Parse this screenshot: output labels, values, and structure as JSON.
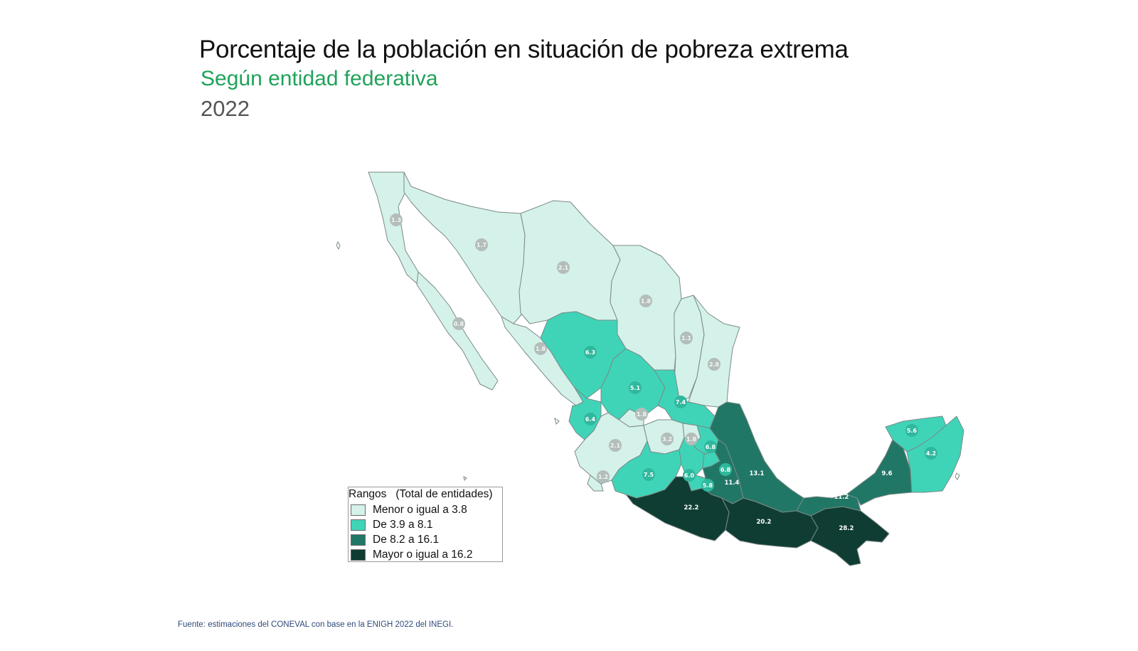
{
  "header": {
    "title": "Porcentaje de la población en situación de pobreza extrema",
    "subtitle": "Según entidad federativa",
    "year": "2022"
  },
  "colors": {
    "range1": "#d4f1ea",
    "range2": "#3fd4b8",
    "range3": "#217766",
    "range4": "#0f3d34",
    "border": "#7c8a86",
    "subtitle": "#1fa35a",
    "source": "#2f4a7a"
  },
  "legend": {
    "title": "Rangos   (Total de entidades)",
    "items": [
      {
        "label": "Menor o igual a 3.8",
        "color": "#d4f1ea"
      },
      {
        "label": "De 3.9 a 8.1",
        "color": "#3fd4b8"
      },
      {
        "label": "De 8.2 a 16.1",
        "color": "#217766"
      },
      {
        "label": "Mayor o igual a 16.2",
        "color": "#0f3d34"
      }
    ]
  },
  "map": {
    "labels": [
      {
        "value": "1.3",
        "range": 1
      },
      {
        "value": "1.7",
        "range": 1
      },
      {
        "value": "2.1",
        "range": 1
      },
      {
        "value": "1.8",
        "range": 1
      },
      {
        "value": "1.1",
        "range": 1
      },
      {
        "value": "2.8",
        "range": 1
      },
      {
        "value": "0.8",
        "range": 1
      },
      {
        "value": "1.8",
        "range": 1
      },
      {
        "value": "6.3",
        "range": 2
      },
      {
        "value": "5.1",
        "range": 2
      },
      {
        "value": "7.4",
        "range": 2
      },
      {
        "value": "6.4",
        "range": 2
      },
      {
        "value": "1.8",
        "range": 1
      },
      {
        "value": "2.1",
        "range": 1
      },
      {
        "value": "3.2",
        "range": 1
      },
      {
        "value": "1.8",
        "range": 1
      },
      {
        "value": "6.8",
        "range": 2
      },
      {
        "value": "7.5",
        "range": 2
      },
      {
        "value": "6.0",
        "range": 2
      },
      {
        "value": "6.8",
        "range": 2
      },
      {
        "value": "5.8",
        "range": 2
      },
      {
        "value": "11.4",
        "range": 3
      },
      {
        "value": "13.1",
        "range": 3
      },
      {
        "value": "1.2",
        "range": 1
      },
      {
        "value": "22.2",
        "range": 4
      },
      {
        "value": "20.2",
        "range": 4
      },
      {
        "value": "28.2",
        "range": 4
      },
      {
        "value": "11.2",
        "range": 3
      },
      {
        "value": "9.6",
        "range": 3
      },
      {
        "value": "5.6",
        "range": 2
      },
      {
        "value": "4.2",
        "range": 2
      }
    ]
  },
  "source": "Fuente: estimaciones del CONEVAL con base en la ENIGH 2022 del INEGI."
}
